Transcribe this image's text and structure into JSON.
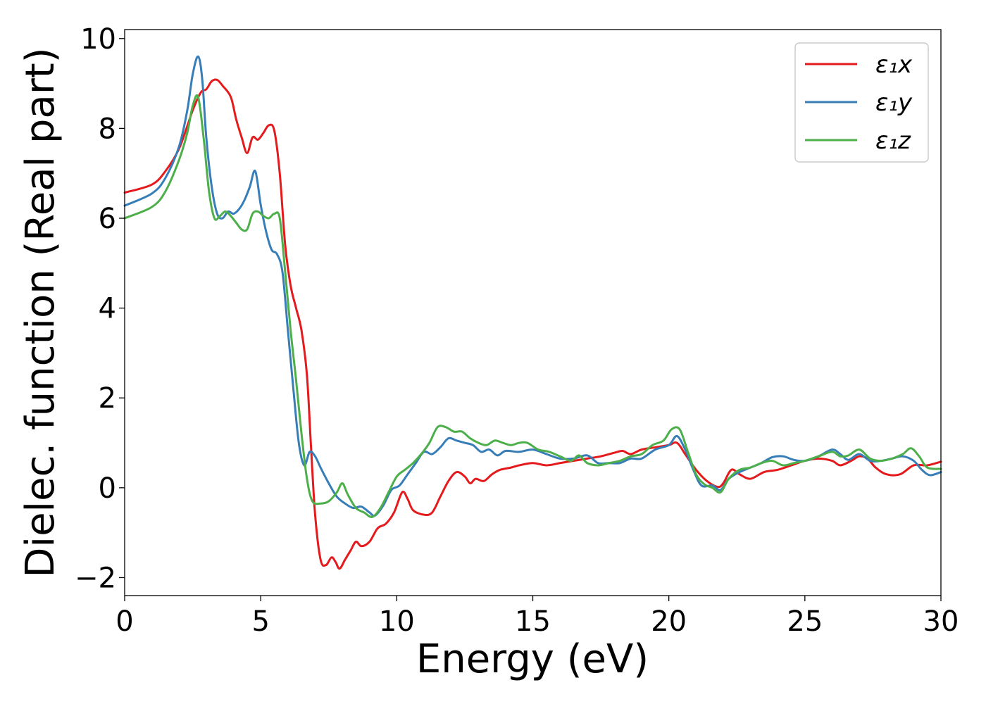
{
  "chart_data": {
    "type": "line",
    "title": "",
    "xlabel": "Energy (eV)",
    "ylabel": "Dielec. function (Real part)",
    "xlim": [
      0,
      30
    ],
    "ylim": [
      -2.4,
      10.2
    ],
    "xticks": [
      0,
      5,
      10,
      15,
      20,
      25,
      30
    ],
    "xtick_labels": [
      "0",
      "5",
      "10",
      "15",
      "20",
      "25",
      "30"
    ],
    "yticks": [
      -2,
      0,
      2,
      4,
      6,
      8,
      10
    ],
    "ytick_labels": [
      "−2",
      "0",
      "2",
      "4",
      "6",
      "8",
      "10"
    ],
    "grid": false,
    "legend_position": "top-right",
    "series": [
      {
        "name": "ε₁x",
        "color": "#e41a1c",
        "points": [
          [
            0,
            6.57
          ],
          [
            1,
            6.75
          ],
          [
            1.5,
            7.05
          ],
          [
            2,
            7.55
          ],
          [
            2.5,
            8.4
          ],
          [
            2.8,
            8.8
          ],
          [
            3,
            8.87
          ],
          [
            3.2,
            9.05
          ],
          [
            3.4,
            9.08
          ],
          [
            3.6,
            8.95
          ],
          [
            3.9,
            8.7
          ],
          [
            4.1,
            8.2
          ],
          [
            4.3,
            7.8
          ],
          [
            4.5,
            7.45
          ],
          [
            4.7,
            7.8
          ],
          [
            4.9,
            7.75
          ],
          [
            5.1,
            7.9
          ],
          [
            5.3,
            8.07
          ],
          [
            5.5,
            7.95
          ],
          [
            5.7,
            7.0
          ],
          [
            5.9,
            5.4
          ],
          [
            6.1,
            4.5
          ],
          [
            6.3,
            4.0
          ],
          [
            6.5,
            3.5
          ],
          [
            6.7,
            2.5
          ],
          [
            6.85,
            0.9
          ],
          [
            7,
            -0.6
          ],
          [
            7.2,
            -1.6
          ],
          [
            7.4,
            -1.72
          ],
          [
            7.6,
            -1.55
          ],
          [
            7.75,
            -1.65
          ],
          [
            7.9,
            -1.8
          ],
          [
            8.1,
            -1.6
          ],
          [
            8.3,
            -1.4
          ],
          [
            8.5,
            -1.2
          ],
          [
            8.7,
            -1.3
          ],
          [
            9,
            -1.2
          ],
          [
            9.3,
            -0.9
          ],
          [
            9.6,
            -0.8
          ],
          [
            9.9,
            -0.55
          ],
          [
            10.2,
            -0.1
          ],
          [
            10.4,
            -0.25
          ],
          [
            10.6,
            -0.5
          ],
          [
            11,
            -0.6
          ],
          [
            11.3,
            -0.55
          ],
          [
            11.6,
            -0.2
          ],
          [
            11.9,
            0.15
          ],
          [
            12.2,
            0.35
          ],
          [
            12.5,
            0.25
          ],
          [
            12.7,
            0.1
          ],
          [
            12.9,
            0.2
          ],
          [
            13.2,
            0.15
          ],
          [
            13.5,
            0.3
          ],
          [
            13.8,
            0.4
          ],
          [
            14.2,
            0.45
          ],
          [
            14.5,
            0.5
          ],
          [
            15,
            0.55
          ],
          [
            15.5,
            0.5
          ],
          [
            16,
            0.55
          ],
          [
            16.5,
            0.6
          ],
          [
            17,
            0.65
          ],
          [
            17.5,
            0.7
          ],
          [
            18,
            0.78
          ],
          [
            18.3,
            0.82
          ],
          [
            18.6,
            0.75
          ],
          [
            19,
            0.85
          ],
          [
            19.5,
            0.9
          ],
          [
            20,
            0.95
          ],
          [
            20.3,
            1.0
          ],
          [
            20.6,
            0.75
          ],
          [
            21,
            0.4
          ],
          [
            21.4,
            0.15
          ],
          [
            21.8,
            0.02
          ],
          [
            22,
            0.1
          ],
          [
            22.3,
            0.4
          ],
          [
            22.6,
            0.3
          ],
          [
            23,
            0.2
          ],
          [
            23.5,
            0.35
          ],
          [
            24,
            0.4
          ],
          [
            24.5,
            0.5
          ],
          [
            25,
            0.6
          ],
          [
            25.5,
            0.65
          ],
          [
            26,
            0.6
          ],
          [
            26.3,
            0.5
          ],
          [
            26.7,
            0.6
          ],
          [
            27,
            0.7
          ],
          [
            27.3,
            0.65
          ],
          [
            27.6,
            0.45
          ],
          [
            28,
            0.3
          ],
          [
            28.5,
            0.3
          ],
          [
            29,
            0.5
          ],
          [
            29.5,
            0.5
          ],
          [
            30,
            0.58
          ]
        ]
      },
      {
        "name": "ε₁y",
        "color": "#377eb8",
        "points": [
          [
            0,
            6.28
          ],
          [
            1,
            6.55
          ],
          [
            1.5,
            6.9
          ],
          [
            2,
            7.6
          ],
          [
            2.3,
            8.4
          ],
          [
            2.5,
            9.2
          ],
          [
            2.7,
            9.6
          ],
          [
            2.85,
            9.1
          ],
          [
            3.0,
            7.8
          ],
          [
            3.2,
            6.7
          ],
          [
            3.4,
            6.1
          ],
          [
            3.6,
            6.0
          ],
          [
            3.8,
            6.15
          ],
          [
            4.0,
            6.1
          ],
          [
            4.2,
            6.2
          ],
          [
            4.4,
            6.4
          ],
          [
            4.6,
            6.7
          ],
          [
            4.8,
            7.05
          ],
          [
            5.0,
            6.3
          ],
          [
            5.2,
            5.7
          ],
          [
            5.4,
            5.3
          ],
          [
            5.6,
            5.2
          ],
          [
            5.8,
            4.8
          ],
          [
            6.0,
            3.5
          ],
          [
            6.2,
            2.2
          ],
          [
            6.4,
            1.0
          ],
          [
            6.6,
            0.5
          ],
          [
            6.8,
            0.8
          ],
          [
            7.0,
            0.7
          ],
          [
            7.2,
            0.45
          ],
          [
            7.5,
            0.1
          ],
          [
            7.8,
            -0.2
          ],
          [
            8.1,
            -0.35
          ],
          [
            8.4,
            -0.45
          ],
          [
            8.7,
            -0.42
          ],
          [
            9.0,
            -0.55
          ],
          [
            9.2,
            -0.62
          ],
          [
            9.5,
            -0.4
          ],
          [
            9.8,
            -0.05
          ],
          [
            10.1,
            0.05
          ],
          [
            10.4,
            0.3
          ],
          [
            10.7,
            0.55
          ],
          [
            11,
            0.8
          ],
          [
            11.3,
            0.75
          ],
          [
            11.6,
            0.9
          ],
          [
            11.9,
            1.1
          ],
          [
            12.2,
            1.05
          ],
          [
            12.5,
            1.0
          ],
          [
            12.8,
            0.95
          ],
          [
            13.1,
            0.8
          ],
          [
            13.4,
            0.85
          ],
          [
            13.7,
            0.72
          ],
          [
            14,
            0.82
          ],
          [
            14.5,
            0.8
          ],
          [
            15,
            0.85
          ],
          [
            15.5,
            0.75
          ],
          [
            16,
            0.65
          ],
          [
            16.5,
            0.65
          ],
          [
            17,
            0.72
          ],
          [
            17.4,
            0.55
          ],
          [
            17.8,
            0.55
          ],
          [
            18.2,
            0.55
          ],
          [
            18.6,
            0.65
          ],
          [
            19,
            0.65
          ],
          [
            19.5,
            0.85
          ],
          [
            20,
            0.95
          ],
          [
            20.3,
            1.15
          ],
          [
            20.6,
            0.85
          ],
          [
            20.9,
            0.4
          ],
          [
            21.2,
            0.05
          ],
          [
            21.6,
            0.05
          ],
          [
            21.9,
            -0.05
          ],
          [
            22.2,
            0.2
          ],
          [
            22.6,
            0.35
          ],
          [
            23,
            0.45
          ],
          [
            23.4,
            0.55
          ],
          [
            23.8,
            0.68
          ],
          [
            24.2,
            0.7
          ],
          [
            24.6,
            0.62
          ],
          [
            25,
            0.6
          ],
          [
            25.5,
            0.7
          ],
          [
            26,
            0.85
          ],
          [
            26.3,
            0.75
          ],
          [
            26.6,
            0.62
          ],
          [
            27,
            0.75
          ],
          [
            27.4,
            0.6
          ],
          [
            27.8,
            0.6
          ],
          [
            28.2,
            0.65
          ],
          [
            28.6,
            0.7
          ],
          [
            29,
            0.6
          ],
          [
            29.3,
            0.4
          ],
          [
            29.6,
            0.28
          ],
          [
            30,
            0.35
          ]
        ]
      },
      {
        "name": "ε₁z",
        "color": "#4daf4a",
        "points": [
          [
            0,
            6.0
          ],
          [
            1,
            6.25
          ],
          [
            1.5,
            6.6
          ],
          [
            2,
            7.3
          ],
          [
            2.3,
            7.9
          ],
          [
            2.5,
            8.5
          ],
          [
            2.7,
            8.7
          ],
          [
            2.9,
            7.8
          ],
          [
            3.1,
            6.6
          ],
          [
            3.3,
            6.0
          ],
          [
            3.5,
            6.05
          ],
          [
            3.7,
            6.15
          ],
          [
            3.9,
            6.05
          ],
          [
            4.1,
            5.9
          ],
          [
            4.3,
            5.75
          ],
          [
            4.5,
            5.75
          ],
          [
            4.7,
            6.1
          ],
          [
            4.9,
            6.15
          ],
          [
            5.1,
            6.05
          ],
          [
            5.3,
            6.0
          ],
          [
            5.5,
            6.1
          ],
          [
            5.7,
            6.0
          ],
          [
            5.9,
            4.8
          ],
          [
            6.1,
            3.5
          ],
          [
            6.3,
            2.4
          ],
          [
            6.5,
            1.2
          ],
          [
            6.7,
            0.2
          ],
          [
            6.9,
            -0.3
          ],
          [
            7.2,
            -0.35
          ],
          [
            7.5,
            -0.3
          ],
          [
            7.8,
            -0.1
          ],
          [
            8.0,
            0.1
          ],
          [
            8.2,
            -0.15
          ],
          [
            8.5,
            -0.45
          ],
          [
            8.8,
            -0.55
          ],
          [
            9.1,
            -0.65
          ],
          [
            9.4,
            -0.45
          ],
          [
            9.7,
            -0.1
          ],
          [
            10,
            0.25
          ],
          [
            10.3,
            0.4
          ],
          [
            10.6,
            0.55
          ],
          [
            10.9,
            0.75
          ],
          [
            11.2,
            1.0
          ],
          [
            11.5,
            1.35
          ],
          [
            11.8,
            1.35
          ],
          [
            12.1,
            1.25
          ],
          [
            12.4,
            1.25
          ],
          [
            12.7,
            1.1
          ],
          [
            13,
            1.0
          ],
          [
            13.3,
            0.95
          ],
          [
            13.6,
            1.05
          ],
          [
            13.9,
            1.0
          ],
          [
            14.2,
            0.95
          ],
          [
            14.5,
            1.0
          ],
          [
            14.8,
            1.0
          ],
          [
            15.2,
            0.85
          ],
          [
            15.6,
            0.8
          ],
          [
            16,
            0.7
          ],
          [
            16.4,
            0.6
          ],
          [
            16.7,
            0.72
          ],
          [
            17,
            0.55
          ],
          [
            17.4,
            0.5
          ],
          [
            17.8,
            0.55
          ],
          [
            18.2,
            0.6
          ],
          [
            18.6,
            0.7
          ],
          [
            19,
            0.75
          ],
          [
            19.4,
            0.95
          ],
          [
            19.8,
            1.05
          ],
          [
            20.1,
            1.3
          ],
          [
            20.4,
            1.3
          ],
          [
            20.7,
            0.8
          ],
          [
            21,
            0.3
          ],
          [
            21.3,
            0.08
          ],
          [
            21.6,
            0.0
          ],
          [
            21.9,
            -0.1
          ],
          [
            22.2,
            0.2
          ],
          [
            22.6,
            0.4
          ],
          [
            23,
            0.45
          ],
          [
            23.4,
            0.55
          ],
          [
            23.8,
            0.6
          ],
          [
            24.2,
            0.5
          ],
          [
            24.6,
            0.55
          ],
          [
            25,
            0.6
          ],
          [
            25.5,
            0.7
          ],
          [
            26,
            0.8
          ],
          [
            26.3,
            0.7
          ],
          [
            26.6,
            0.72
          ],
          [
            27,
            0.85
          ],
          [
            27.4,
            0.65
          ],
          [
            27.8,
            0.6
          ],
          [
            28.2,
            0.65
          ],
          [
            28.6,
            0.75
          ],
          [
            28.9,
            0.88
          ],
          [
            29.2,
            0.7
          ],
          [
            29.5,
            0.45
          ],
          [
            30,
            0.42
          ]
        ]
      }
    ]
  }
}
